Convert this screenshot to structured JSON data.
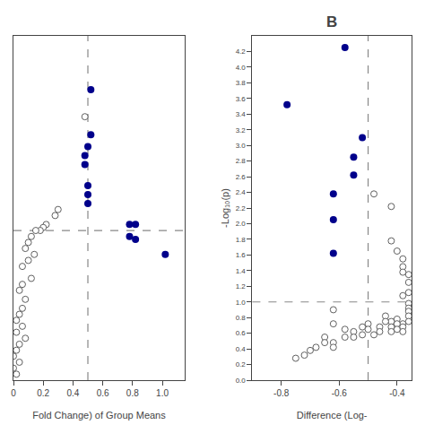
{
  "chart_data": [
    {
      "type": "scatter",
      "xlabel": "Fold Change) of Group Means",
      "xlim": [
        0.0,
        1.15
      ],
      "ylim": [
        0.0,
        1.15
      ],
      "xticks": [
        0,
        0.2,
        0.4,
        0.6,
        0.8,
        {
          "value": 1.0,
          "label": "1.0"
        }
      ],
      "tick_labels": "x",
      "grid": false,
      "reference_lines": [
        {
          "axis": "x",
          "value": 0.5,
          "color": "#888888",
          "line_style": "dashed"
        },
        {
          "axis": "y",
          "value": 0.5,
          "color": "#888888",
          "line_style": "dashed"
        }
      ],
      "series": [
        {
          "marker": "open",
          "color": "#606060",
          "x": [
            0.48,
            0.3,
            0.28,
            0.22,
            0.2,
            0.18,
            0.15,
            0.12,
            0.1,
            0.08,
            0.14,
            0.1,
            0.06,
            0.12,
            0.06,
            0.04,
            0.08,
            0.06,
            0.04,
            0.02,
            0.06,
            0.02,
            0.08,
            0.04,
            0.02,
            0.0,
            0.04,
            0.0,
            0.02
          ],
          "y": [
            0.88,
            0.57,
            0.55,
            0.52,
            0.51,
            0.5,
            0.5,
            0.48,
            0.46,
            0.44,
            0.42,
            0.4,
            0.38,
            0.34,
            0.32,
            0.3,
            0.27,
            0.24,
            0.22,
            0.2,
            0.18,
            0.16,
            0.14,
            0.12,
            0.1,
            0.08,
            0.06,
            0.04,
            0.02
          ]
        },
        {
          "marker": "filled",
          "color": "#00008B",
          "x": [
            0.52,
            0.52,
            0.48,
            0.48,
            0.5,
            0.5,
            0.5,
            0.82,
            0.82,
            0.78,
            0.78,
            1.02,
            0.5
          ],
          "y": [
            0.97,
            0.82,
            0.75,
            0.72,
            0.65,
            0.62,
            0.59,
            0.52,
            0.47,
            0.52,
            0.48,
            0.42,
            0.78
          ]
        }
      ]
    },
    {
      "type": "scatter",
      "title": "B",
      "xlabel": "Difference (Log-",
      "ylabel": "-Log₁₀(p)",
      "xlim": [
        -0.9,
        -0.35
      ],
      "ylim": [
        0.0,
        4.4
      ],
      "xticks": [
        -0.8,
        -0.6,
        -0.4
      ],
      "yticks": [
        {
          "value": 0.0,
          "label": "0.0"
        },
        0.2,
        0.4,
        0.6,
        0.8,
        {
          "value": 1.0,
          "label": "1.0"
        },
        1.2,
        1.4,
        1.6,
        1.8,
        {
          "value": 2.0,
          "label": "2.0"
        },
        2.2,
        2.4,
        2.6,
        2.8,
        {
          "value": 3.0,
          "label": "3.0"
        },
        3.2,
        3.4,
        3.6,
        3.8,
        {
          "value": 4.0,
          "label": "4.0"
        },
        4.2
      ],
      "grid": false,
      "reference_lines": [
        {
          "axis": "x",
          "value": -0.5,
          "color": "#888888",
          "line_style": "dashed"
        },
        {
          "axis": "y",
          "value": 1.0,
          "color": "#888888",
          "line_style": "dashed"
        }
      ],
      "series": [
        {
          "marker": "open",
          "color": "#606060",
          "x": [
            -0.48,
            -0.62,
            -0.62,
            -0.42,
            -0.4,
            -0.38,
            -0.38,
            -0.38,
            -0.36,
            -0.36,
            -0.36,
            -0.42,
            -0.38,
            -0.36,
            -0.36,
            -0.36,
            -0.36,
            -0.36,
            -0.38,
            -0.38,
            -0.38,
            -0.4,
            -0.4,
            -0.4,
            -0.42,
            -0.42,
            -0.42,
            -0.44,
            -0.44,
            -0.46,
            -0.46,
            -0.48,
            -0.5,
            -0.5,
            -0.52,
            -0.52,
            -0.55,
            -0.55,
            -0.58,
            -0.58,
            -0.62,
            -0.62,
            -0.65,
            -0.65,
            -0.68,
            -0.7,
            -0.72,
            -0.75
          ],
          "y": [
            2.38,
            0.9,
            0.72,
            1.78,
            1.65,
            1.55,
            1.45,
            1.38,
            1.35,
            1.25,
            1.12,
            2.22,
            1.08,
            0.98,
            0.92,
            0.88,
            0.82,
            0.75,
            0.72,
            0.68,
            0.62,
            0.78,
            0.72,
            0.65,
            0.75,
            0.68,
            0.62,
            0.82,
            0.75,
            0.68,
            0.62,
            0.58,
            0.72,
            0.65,
            0.68,
            0.58,
            0.62,
            0.55,
            0.65,
            0.55,
            0.48,
            0.42,
            0.55,
            0.48,
            0.42,
            0.38,
            0.32,
            0.28
          ]
        },
        {
          "marker": "filled",
          "color": "#00008B",
          "x": [
            -0.58,
            -0.78,
            -0.52,
            -0.55,
            -0.55,
            -0.62,
            -0.62,
            -0.62
          ],
          "y": [
            4.25,
            3.52,
            3.1,
            2.85,
            2.62,
            2.38,
            2.05,
            1.62
          ]
        }
      ]
    }
  ]
}
